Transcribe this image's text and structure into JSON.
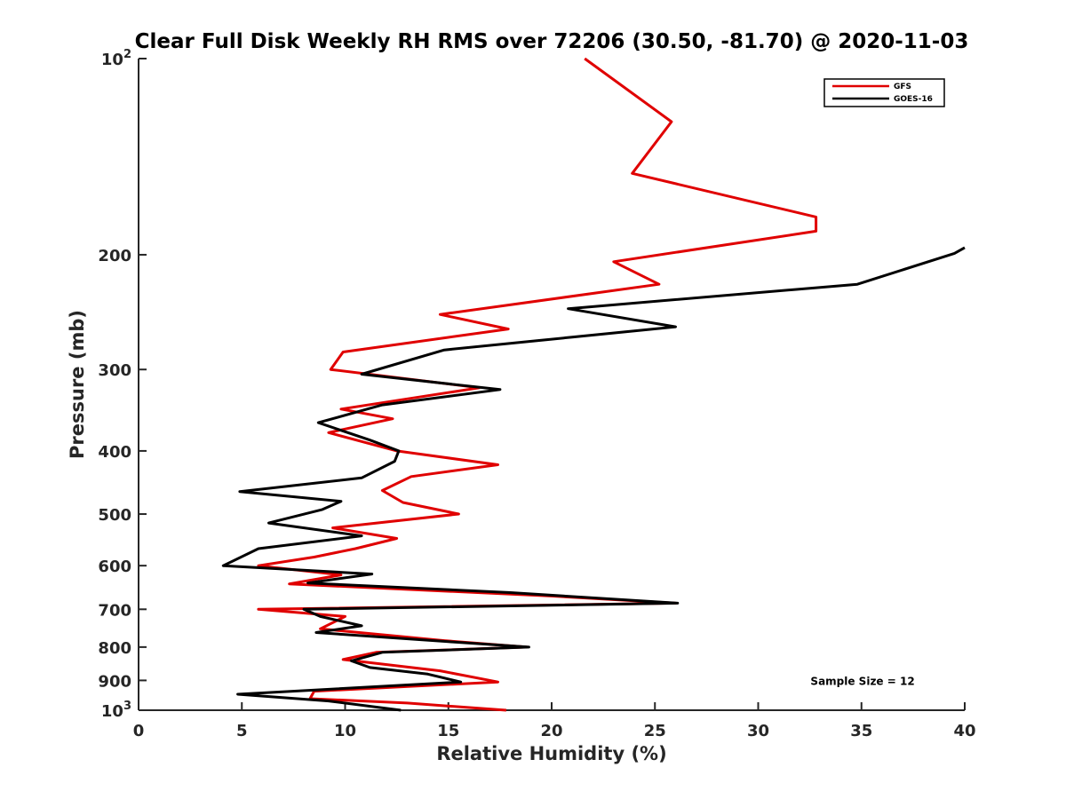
{
  "chart_data": {
    "type": "line",
    "title": "Clear Full Disk Weekly RH RMS over 72206 (30.50, -81.70) @ 2020-11-03",
    "xlabel": "Relative Humidity (%)",
    "ylabel": "Pressure (mb)",
    "xlim": [
      0,
      40
    ],
    "ylim": [
      100,
      1000
    ],
    "y_scale": "log",
    "y_reversed": true,
    "grid": false,
    "legend_position": "top-right",
    "x_ticks": [
      {
        "value": 0,
        "label": "0"
      },
      {
        "value": 5,
        "label": "5"
      },
      {
        "value": 10,
        "label": "10"
      },
      {
        "value": 15,
        "label": "15"
      },
      {
        "value": 20,
        "label": "20"
      },
      {
        "value": 25,
        "label": "25"
      },
      {
        "value": 30,
        "label": "30"
      },
      {
        "value": 35,
        "label": "35"
      },
      {
        "value": 40,
        "label": "40"
      }
    ],
    "y_ticks": [
      {
        "value": 100,
        "label": "10",
        "sup": "2"
      },
      {
        "value": 200,
        "label": "200"
      },
      {
        "value": 300,
        "label": "300"
      },
      {
        "value": 400,
        "label": "400"
      },
      {
        "value": 500,
        "label": "500"
      },
      {
        "value": 600,
        "label": "600"
      },
      {
        "value": 700,
        "label": "700"
      },
      {
        "value": 800,
        "label": "800"
      },
      {
        "value": 900,
        "label": "900"
      },
      {
        "value": 1000,
        "label": "10",
        "sup": "3"
      }
    ],
    "series": [
      {
        "name": "GFS",
        "color": "#e00000",
        "points": [
          [
            21.6,
            100
          ],
          [
            25.8,
            125
          ],
          [
            23.9,
            150
          ],
          [
            32.8,
            175
          ],
          [
            32.8,
            184
          ],
          [
            23.0,
            205
          ],
          [
            25.2,
            222
          ],
          [
            14.6,
            247
          ],
          [
            17.9,
            260
          ],
          [
            9.9,
            282
          ],
          [
            9.3,
            300
          ],
          [
            16.5,
            320
          ],
          [
            9.8,
            345
          ],
          [
            12.3,
            357
          ],
          [
            9.2,
            375
          ],
          [
            12.5,
            400
          ],
          [
            17.4,
            420
          ],
          [
            13.2,
            438
          ],
          [
            11.8,
            460
          ],
          [
            12.8,
            480
          ],
          [
            15.5,
            500
          ],
          [
            9.4,
            525
          ],
          [
            12.5,
            545
          ],
          [
            10.5,
            565
          ],
          [
            8.5,
            582
          ],
          [
            5.8,
            600
          ],
          [
            9.8,
            620
          ],
          [
            7.3,
            640
          ],
          [
            20.0,
            668
          ],
          [
            26.0,
            685
          ],
          [
            5.8,
            700
          ],
          [
            10.0,
            718
          ],
          [
            8.8,
            750
          ],
          [
            14.8,
            782
          ],
          [
            18.8,
            800
          ],
          [
            11.5,
            815
          ],
          [
            9.9,
            836
          ],
          [
            14.6,
            870
          ],
          [
            17.4,
            905
          ],
          [
            8.5,
            935
          ],
          [
            8.3,
            960
          ],
          [
            13.0,
            975
          ],
          [
            17.8,
            1000
          ]
        ]
      },
      {
        "name": "GOES-16",
        "color": "#000000",
        "points": [
          [
            40.0,
            195
          ],
          [
            39.5,
            199
          ],
          [
            34.8,
            222
          ],
          [
            20.8,
            242
          ],
          [
            26.0,
            258
          ],
          [
            14.8,
            280
          ],
          [
            10.8,
            305
          ],
          [
            17.5,
            322
          ],
          [
            11.8,
            340
          ],
          [
            8.7,
            362
          ],
          [
            11.2,
            385
          ],
          [
            12.6,
            400
          ],
          [
            12.4,
            415
          ],
          [
            10.8,
            440
          ],
          [
            4.9,
            462
          ],
          [
            9.8,
            478
          ],
          [
            8.9,
            492
          ],
          [
            6.3,
            516
          ],
          [
            10.8,
            540
          ],
          [
            5.8,
            565
          ],
          [
            4.1,
            600
          ],
          [
            11.3,
            618
          ],
          [
            8.2,
            638
          ],
          [
            18.0,
            660
          ],
          [
            26.1,
            685
          ],
          [
            8.0,
            700
          ],
          [
            8.8,
            718
          ],
          [
            10.8,
            742
          ],
          [
            8.6,
            760
          ],
          [
            15.0,
            785
          ],
          [
            18.9,
            800
          ],
          [
            11.8,
            815
          ],
          [
            10.3,
            840
          ],
          [
            11.2,
            860
          ],
          [
            14.0,
            880
          ],
          [
            15.6,
            905
          ],
          [
            4.8,
            945
          ],
          [
            9.2,
            968
          ],
          [
            12.7,
            1000
          ]
        ]
      }
    ],
    "annotations": [
      {
        "text": "Sample Size = 12",
        "x": 34.9,
        "y": 900
      }
    ]
  }
}
